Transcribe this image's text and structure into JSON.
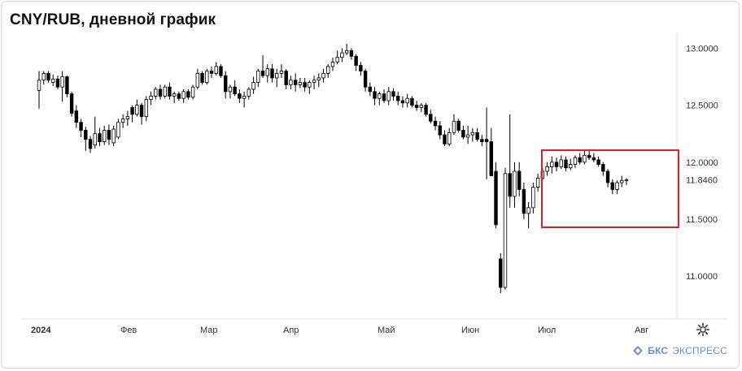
{
  "title": "CNY/RUB, дневной график",
  "brand": {
    "short": "БКС",
    "rest": "ЭКСПРЕСС"
  },
  "settings_icon": "gear-icon",
  "colors": {
    "up": "#ffffff",
    "down": "#000000",
    "wick": "#000000",
    "highlight": "#e0202b",
    "axis_text": "#333333",
    "brand": "#6b8fd6"
  },
  "chart_data": {
    "type": "candlestick",
    "title": "CNY/RUB, дневной график",
    "y_ticks": [
      11.0,
      11.5,
      12.0,
      12.5,
      13.0
    ],
    "y_tick_labels": [
      "11.0000",
      "11.5000",
      "12.0000",
      "12.5000",
      "13.0000"
    ],
    "last_price": 11.846,
    "last_price_label": "11.8460",
    "ylim": [
      10.72,
      13.2
    ],
    "x_labels": [
      "2024",
      "Фев",
      "Мар",
      "Апр",
      "Май",
      "Июн",
      "Июл",
      "Авг"
    ],
    "highlight_box": {
      "x_from": "2024-07-01",
      "x_to": "2024-08-16",
      "y_from": 11.45,
      "y_to": 12.1
    },
    "candles": [
      [
        12.63,
        12.8,
        12.47,
        12.72
      ],
      [
        12.72,
        12.8,
        12.68,
        12.78
      ],
      [
        12.78,
        12.8,
        12.7,
        12.72
      ],
      [
        12.7,
        12.77,
        12.67,
        12.73
      ],
      [
        12.73,
        12.76,
        12.64,
        12.66
      ],
      [
        12.66,
        12.8,
        12.53,
        12.75
      ],
      [
        12.75,
        12.76,
        12.57,
        12.6
      ],
      [
        12.6,
        12.62,
        12.4,
        12.43
      ],
      [
        12.45,
        12.5,
        12.3,
        12.35
      ],
      [
        12.35,
        12.38,
        12.22,
        12.28
      ],
      [
        12.28,
        12.31,
        12.1,
        12.2
      ],
      [
        12.2,
        12.23,
        12.08,
        12.12
      ],
      [
        12.15,
        12.4,
        12.12,
        12.25
      ],
      [
        12.25,
        12.3,
        12.14,
        12.18
      ],
      [
        12.18,
        12.32,
        12.15,
        12.28
      ],
      [
        12.28,
        12.33,
        12.15,
        12.2
      ],
      [
        12.17,
        12.32,
        12.14,
        12.29
      ],
      [
        12.22,
        12.38,
        12.2,
        12.35
      ],
      [
        12.35,
        12.42,
        12.3,
        12.38
      ],
      [
        12.38,
        12.45,
        12.32,
        12.4
      ],
      [
        12.48,
        12.5,
        12.35,
        12.42
      ],
      [
        12.42,
        12.55,
        12.4,
        12.5
      ],
      [
        12.5,
        12.52,
        12.33,
        12.4
      ],
      [
        12.4,
        12.58,
        12.36,
        12.55
      ],
      [
        12.55,
        12.62,
        12.5,
        12.58
      ],
      [
        12.58,
        12.66,
        12.55,
        12.64
      ],
      [
        12.64,
        12.68,
        12.55,
        12.58
      ],
      [
        12.58,
        12.68,
        12.56,
        12.66
      ],
      [
        12.66,
        12.7,
        12.55,
        12.58
      ],
      [
        12.58,
        12.62,
        12.52,
        12.6
      ],
      [
        12.6,
        12.62,
        12.54,
        12.56
      ],
      [
        12.56,
        12.64,
        12.52,
        12.62
      ],
      [
        12.62,
        12.64,
        12.55,
        12.57
      ],
      [
        12.57,
        12.68,
        12.55,
        12.66
      ],
      [
        12.66,
        12.82,
        12.64,
        12.78
      ],
      [
        12.78,
        12.8,
        12.68,
        12.7
      ],
      [
        12.7,
        12.82,
        12.68,
        12.8
      ],
      [
        12.8,
        12.84,
        12.74,
        12.78
      ],
      [
        12.78,
        12.88,
        12.76,
        12.84
      ],
      [
        12.84,
        12.86,
        12.74,
        12.76
      ],
      [
        12.76,
        12.8,
        12.56,
        12.62
      ],
      [
        12.62,
        12.68,
        12.56,
        12.66
      ],
      [
        12.66,
        12.72,
        12.58,
        12.6
      ],
      [
        12.6,
        12.64,
        12.52,
        12.56
      ],
      [
        12.56,
        12.62,
        12.48,
        12.58
      ],
      [
        12.58,
        12.66,
        12.55,
        12.64
      ],
      [
        12.64,
        12.75,
        12.6,
        12.7
      ],
      [
        12.7,
        12.82,
        12.66,
        12.8
      ],
      [
        12.8,
        12.94,
        12.74,
        12.76
      ],
      [
        12.76,
        12.86,
        12.7,
        12.82
      ],
      [
        12.82,
        12.86,
        12.7,
        12.74
      ],
      [
        12.74,
        12.82,
        12.66,
        12.78
      ],
      [
        12.78,
        12.86,
        12.74,
        12.8
      ],
      [
        12.8,
        12.82,
        12.64,
        12.68
      ],
      [
        12.68,
        12.76,
        12.64,
        12.72
      ],
      [
        12.72,
        12.78,
        12.62,
        12.68
      ],
      [
        12.68,
        12.74,
        12.65,
        12.7
      ],
      [
        12.7,
        12.74,
        12.62,
        12.66
      ],
      [
        12.66,
        12.72,
        12.6,
        12.7
      ],
      [
        12.7,
        12.76,
        12.64,
        12.72
      ],
      [
        12.72,
        12.78,
        12.66,
        12.74
      ],
      [
        12.74,
        12.82,
        12.7,
        12.78
      ],
      [
        12.78,
        12.86,
        12.74,
        12.84
      ],
      [
        12.84,
        12.92,
        12.8,
        12.88
      ],
      [
        12.88,
        12.98,
        12.86,
        12.92
      ],
      [
        12.92,
        13.0,
        12.88,
        12.96
      ],
      [
        12.96,
        13.04,
        12.94,
        12.98
      ],
      [
        12.98,
        13.0,
        12.9,
        12.93
      ],
      [
        12.93,
        12.95,
        12.8,
        12.85
      ],
      [
        12.85,
        12.88,
        12.76,
        12.8
      ],
      [
        12.8,
        12.82,
        12.62,
        12.66
      ],
      [
        12.66,
        12.7,
        12.58,
        12.62
      ],
      [
        12.62,
        12.66,
        12.5,
        12.56
      ],
      [
        12.56,
        12.62,
        12.5,
        12.6
      ],
      [
        12.6,
        12.64,
        12.52,
        12.54
      ],
      [
        12.54,
        12.66,
        12.5,
        12.62
      ],
      [
        12.62,
        12.65,
        12.54,
        12.58
      ],
      [
        12.58,
        12.62,
        12.5,
        12.54
      ],
      [
        12.54,
        12.58,
        12.48,
        12.52
      ],
      [
        12.52,
        12.6,
        12.48,
        12.56
      ],
      [
        12.56,
        12.58,
        12.48,
        12.5
      ],
      [
        12.5,
        12.54,
        12.45,
        12.48
      ],
      [
        12.48,
        12.52,
        12.44,
        12.5
      ],
      [
        12.5,
        12.52,
        12.4,
        12.42
      ],
      [
        12.42,
        12.46,
        12.34,
        12.36
      ],
      [
        12.36,
        12.4,
        12.28,
        12.32
      ],
      [
        12.32,
        12.36,
        12.2,
        12.24
      ],
      [
        12.24,
        12.28,
        12.14,
        12.16
      ],
      [
        12.16,
        12.3,
        12.14,
        12.26
      ],
      [
        12.26,
        12.42,
        12.24,
        12.36
      ],
      [
        12.36,
        12.38,
        12.26,
        12.28
      ],
      [
        12.28,
        12.32,
        12.2,
        12.22
      ],
      [
        12.22,
        12.32,
        12.16,
        12.24
      ],
      [
        12.24,
        12.3,
        12.18,
        12.26
      ],
      [
        12.26,
        12.3,
        12.18,
        12.2
      ],
      [
        12.2,
        12.24,
        12.14,
        12.18
      ],
      [
        12.2,
        12.48,
        11.85,
        12.18
      ],
      [
        12.18,
        12.3,
        11.9,
        11.88
      ],
      [
        11.92,
        12.0,
        11.42,
        11.45
      ],
      [
        11.15,
        11.2,
        10.85,
        10.9
      ],
      [
        10.9,
        11.95,
        10.88,
        11.9
      ],
      [
        11.9,
        12.42,
        11.6,
        11.7
      ],
      [
        11.7,
        12.0,
        11.6,
        11.92
      ],
      [
        11.92,
        12.0,
        11.7,
        11.76
      ],
      [
        11.76,
        11.82,
        11.5,
        11.55
      ],
      [
        11.55,
        11.65,
        11.42,
        11.6
      ],
      [
        11.6,
        11.82,
        11.55,
        11.78
      ],
      [
        11.78,
        11.9,
        11.74,
        11.86
      ],
      [
        11.86,
        11.95,
        11.84,
        11.92
      ],
      [
        11.92,
        12.0,
        11.88,
        11.96
      ],
      [
        11.96,
        12.05,
        11.9,
        12.0
      ],
      [
        12.0,
        12.04,
        11.92,
        11.96
      ],
      [
        11.96,
        12.06,
        11.94,
        12.02
      ],
      [
        12.02,
        12.05,
        11.92,
        11.95
      ],
      [
        11.95,
        12.03,
        11.93,
        11.98
      ],
      [
        11.98,
        12.06,
        11.95,
        12.04
      ],
      [
        12.04,
        12.08,
        11.98,
        12.0
      ],
      [
        12.0,
        12.1,
        11.98,
        12.06
      ],
      [
        12.06,
        12.1,
        12.02,
        12.04
      ],
      [
        12.04,
        12.08,
        12.0,
        12.02
      ],
      [
        12.02,
        12.05,
        11.96,
        11.98
      ],
      [
        11.98,
        12.0,
        11.88,
        11.92
      ],
      [
        11.92,
        11.94,
        11.78,
        11.82
      ],
      [
        11.82,
        11.85,
        11.72,
        11.76
      ],
      [
        11.76,
        11.84,
        11.72,
        11.82
      ],
      [
        11.82,
        11.88,
        11.78,
        11.84
      ],
      [
        11.84,
        11.86,
        11.8,
        11.846
      ]
    ]
  }
}
